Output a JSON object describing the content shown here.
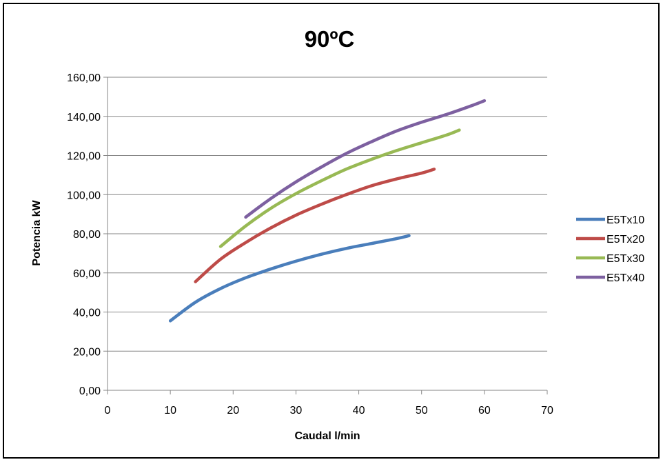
{
  "chart_data": {
    "type": "line",
    "title": "90ºC",
    "xlabel": "Caudal l/min",
    "ylabel": "Potencia kW",
    "xlim": [
      0,
      70
    ],
    "ylim": [
      0,
      160
    ],
    "x_ticks": [
      "0",
      "10",
      "20",
      "30",
      "40",
      "50",
      "60",
      "70"
    ],
    "x_tick_values": [
      0,
      10,
      20,
      30,
      40,
      50,
      60,
      70
    ],
    "y_ticks": [
      "0,00",
      "20,00",
      "40,00",
      "60,00",
      "80,00",
      "100,00",
      "120,00",
      "140,00",
      "160,00"
    ],
    "y_tick_values": [
      0,
      20,
      40,
      60,
      80,
      100,
      120,
      140,
      160
    ],
    "grid": "horizontal",
    "legend_position": "right",
    "series": [
      {
        "name": "E5Tx10",
        "color": "#4a7ebb",
        "points": [
          [
            10,
            35.5
          ],
          [
            14,
            45
          ],
          [
            18,
            52
          ],
          [
            22,
            57.5
          ],
          [
            26,
            62
          ],
          [
            30,
            66
          ],
          [
            34,
            69.5
          ],
          [
            38,
            72.5
          ],
          [
            42,
            75
          ],
          [
            46,
            77.5
          ],
          [
            48,
            79
          ]
        ]
      },
      {
        "name": "E5Tx20",
        "color": "#be4b48",
        "points": [
          [
            14,
            55.5
          ],
          [
            18,
            67
          ],
          [
            22,
            75.5
          ],
          [
            26,
            83
          ],
          [
            30,
            89.5
          ],
          [
            34,
            95
          ],
          [
            38,
            100
          ],
          [
            42,
            104.5
          ],
          [
            46,
            108
          ],
          [
            50,
            111
          ],
          [
            52,
            113
          ]
        ]
      },
      {
        "name": "E5Tx30",
        "color": "#98b954",
        "points": [
          [
            18,
            73.5
          ],
          [
            22,
            84
          ],
          [
            26,
            93
          ],
          [
            30,
            100.5
          ],
          [
            34,
            107
          ],
          [
            38,
            113
          ],
          [
            42,
            118
          ],
          [
            46,
            122.5
          ],
          [
            50,
            126.5
          ],
          [
            54,
            130.5
          ],
          [
            56,
            133
          ]
        ]
      },
      {
        "name": "E5Tx40",
        "color": "#7d60a0",
        "points": [
          [
            22,
            88.5
          ],
          [
            26,
            98
          ],
          [
            30,
            106.5
          ],
          [
            34,
            114
          ],
          [
            38,
            121
          ],
          [
            42,
            127
          ],
          [
            46,
            132.5
          ],
          [
            50,
            137
          ],
          [
            54,
            141
          ],
          [
            58,
            145.5
          ],
          [
            60,
            148
          ]
        ]
      }
    ]
  }
}
